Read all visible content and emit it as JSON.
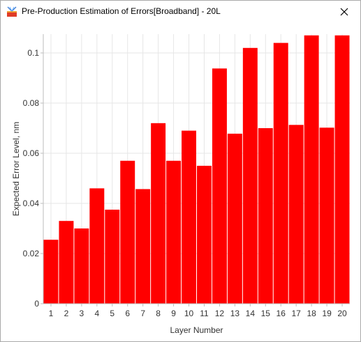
{
  "window": {
    "title": "Pre-Production Estimation of Errors[Broadband] - 20L",
    "icon": "app-logo-icon",
    "close_icon": "close-icon"
  },
  "colors": {
    "bar": "#ff0000",
    "grid": "#e6e6e6",
    "axis": "#bdbdbd"
  },
  "chart_data": {
    "type": "bar",
    "title": "",
    "xlabel": "Layer Number",
    "ylabel": "Expected Error Level, nm",
    "categories": [
      "1",
      "2",
      "3",
      "4",
      "5",
      "6",
      "7",
      "8",
      "9",
      "10",
      "11",
      "12",
      "13",
      "14",
      "15",
      "16",
      "17",
      "18",
      "19",
      "20"
    ],
    "values": [
      0.0255,
      0.033,
      0.03,
      0.046,
      0.0375,
      0.057,
      0.0457,
      0.072,
      0.057,
      0.069,
      0.055,
      0.0938,
      0.0678,
      0.102,
      0.07,
      0.104,
      0.0713,
      0.107,
      0.0702,
      0.107
    ],
    "ylim": [
      0,
      0.1075
    ],
    "yticks": [
      0,
      0.02,
      0.04,
      0.06,
      0.08,
      0.1
    ],
    "ytick_labels": [
      "0",
      "0.02",
      "0.04",
      "0.06",
      "0.08",
      "0.1"
    ],
    "grid": true,
    "legend": "none"
  }
}
